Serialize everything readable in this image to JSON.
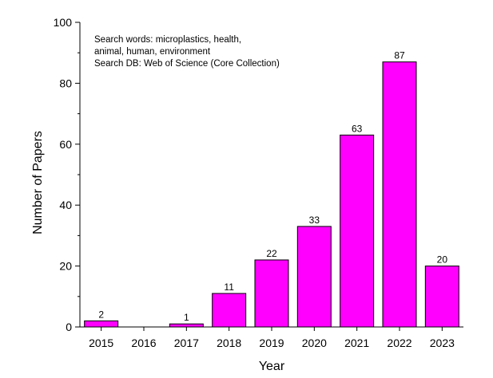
{
  "chart_data": {
    "type": "bar",
    "title": "",
    "xlabel": "Year",
    "ylabel": "Number of Papers",
    "categories": [
      "2015",
      "2016",
      "2017",
      "2018",
      "2019",
      "2020",
      "2021",
      "2022",
      "2023"
    ],
    "values": [
      2,
      0,
      1,
      11,
      22,
      33,
      63,
      87,
      20
    ],
    "data_labels": [
      "2",
      "",
      "1",
      "11",
      "22",
      "33",
      "63",
      "87",
      "20"
    ],
    "ylim": [
      0,
      100
    ],
    "yticks": [
      0,
      20,
      40,
      60,
      80,
      100
    ],
    "ytick_labels": [
      "0",
      "20",
      "40",
      "60",
      "80",
      "100"
    ],
    "bar_color": "#ff00ff",
    "bar_edge_color": "#000000",
    "grid": false,
    "annotation_lines": [
      "Search words: microplastics, health,",
      "animal, human, environment",
      "Search DB: Web of Science (Core Collection)"
    ],
    "annotation_position": "top-left"
  }
}
